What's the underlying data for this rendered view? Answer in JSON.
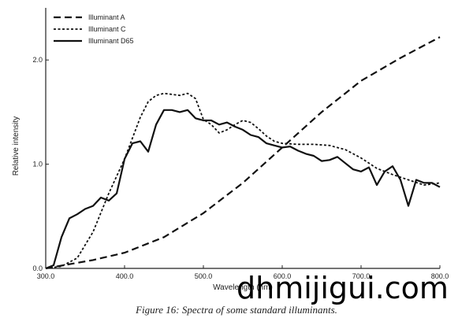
{
  "chart_data": {
    "type": "line",
    "title": "",
    "xlabel": "Wavelength (nm)",
    "ylabel": "Relative intensity",
    "xlim": [
      300,
      800
    ],
    "ylim": [
      0,
      2.5
    ],
    "x_ticks": [
      "300.0",
      "400.0",
      "500.0",
      "600.0",
      "700.0",
      "800.0"
    ],
    "y_ticks": [
      "0.0",
      "1.0",
      "2.0"
    ],
    "legend_position": "top-left",
    "grid": false,
    "series": [
      {
        "name": "Illuminant A",
        "style": "long-dash",
        "points": [
          [
            300,
            0.0
          ],
          [
            330,
            0.04
          ],
          [
            360,
            0.08
          ],
          [
            400,
            0.15
          ],
          [
            450,
            0.3
          ],
          [
            500,
            0.53
          ],
          [
            550,
            0.82
          ],
          [
            600,
            1.16
          ],
          [
            650,
            1.5
          ],
          [
            700,
            1.8
          ],
          [
            750,
            2.02
          ],
          [
            800,
            2.22
          ]
        ]
      },
      {
        "name": "Illuminant C",
        "style": "short-dash",
        "points": [
          [
            300,
            0.0
          ],
          [
            320,
            0.02
          ],
          [
            340,
            0.1
          ],
          [
            360,
            0.35
          ],
          [
            380,
            0.72
          ],
          [
            400,
            1.05
          ],
          [
            410,
            1.25
          ],
          [
            420,
            1.45
          ],
          [
            430,
            1.6
          ],
          [
            440,
            1.66
          ],
          [
            450,
            1.68
          ],
          [
            460,
            1.67
          ],
          [
            470,
            1.66
          ],
          [
            480,
            1.68
          ],
          [
            490,
            1.63
          ],
          [
            500,
            1.43
          ],
          [
            510,
            1.38
          ],
          [
            520,
            1.3
          ],
          [
            530,
            1.33
          ],
          [
            540,
            1.38
          ],
          [
            550,
            1.42
          ],
          [
            560,
            1.4
          ],
          [
            570,
            1.34
          ],
          [
            580,
            1.27
          ],
          [
            590,
            1.22
          ],
          [
            600,
            1.2
          ],
          [
            620,
            1.19
          ],
          [
            640,
            1.19
          ],
          [
            660,
            1.18
          ],
          [
            680,
            1.14
          ],
          [
            700,
            1.06
          ],
          [
            720,
            0.96
          ],
          [
            740,
            0.9
          ],
          [
            760,
            0.85
          ],
          [
            780,
            0.8
          ],
          [
            800,
            0.82
          ]
        ]
      },
      {
        "name": "Illuminant D65",
        "style": "solid",
        "points": [
          [
            300,
            0.0
          ],
          [
            310,
            0.03
          ],
          [
            320,
            0.3
          ],
          [
            330,
            0.48
          ],
          [
            340,
            0.52
          ],
          [
            350,
            0.57
          ],
          [
            360,
            0.6
          ],
          [
            370,
            0.68
          ],
          [
            380,
            0.65
          ],
          [
            390,
            0.72
          ],
          [
            400,
            1.05
          ],
          [
            410,
            1.2
          ],
          [
            420,
            1.22
          ],
          [
            430,
            1.12
          ],
          [
            440,
            1.38
          ],
          [
            450,
            1.52
          ],
          [
            460,
            1.52
          ],
          [
            470,
            1.5
          ],
          [
            480,
            1.52
          ],
          [
            490,
            1.44
          ],
          [
            500,
            1.42
          ],
          [
            510,
            1.42
          ],
          [
            520,
            1.38
          ],
          [
            530,
            1.4
          ],
          [
            540,
            1.36
          ],
          [
            550,
            1.33
          ],
          [
            560,
            1.28
          ],
          [
            570,
            1.26
          ],
          [
            580,
            1.2
          ],
          [
            590,
            1.18
          ],
          [
            600,
            1.16
          ],
          [
            610,
            1.17
          ],
          [
            620,
            1.13
          ],
          [
            630,
            1.1
          ],
          [
            640,
            1.08
          ],
          [
            650,
            1.03
          ],
          [
            660,
            1.04
          ],
          [
            670,
            1.07
          ],
          [
            680,
            1.01
          ],
          [
            690,
            0.95
          ],
          [
            700,
            0.93
          ],
          [
            710,
            0.97
          ],
          [
            720,
            0.8
          ],
          [
            730,
            0.93
          ],
          [
            740,
            0.98
          ],
          [
            750,
            0.85
          ],
          [
            760,
            0.6
          ],
          [
            770,
            0.85
          ],
          [
            780,
            0.82
          ],
          [
            790,
            0.82
          ],
          [
            800,
            0.78
          ]
        ]
      }
    ]
  },
  "caption": "Figure 16:  Spectra of some standard illuminants.",
  "watermark": "dhmijigui.com"
}
